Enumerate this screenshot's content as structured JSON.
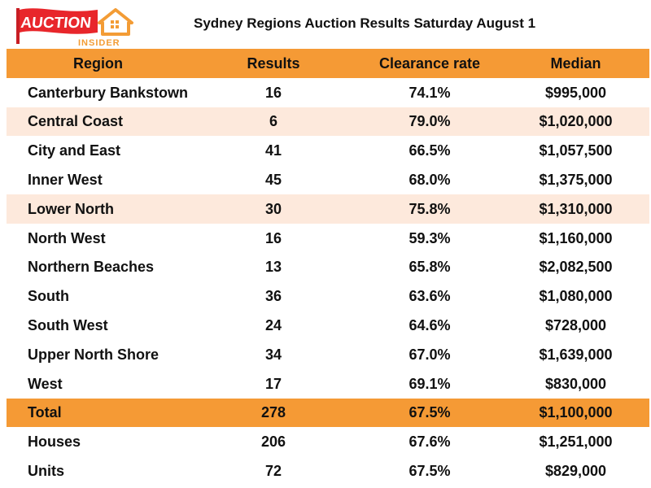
{
  "logo": {
    "word": "AUCTION",
    "subword": "INSIDER",
    "colors": {
      "red": "#e8262b",
      "orange": "#f39c35"
    }
  },
  "chart_data": {
    "type": "table",
    "title": "Sydney Regions Auction Results Saturday August 1",
    "columns": [
      "Region",
      "Results",
      "Clearance rate",
      "Median"
    ],
    "rows": [
      {
        "region": "Canterbury Bankstown",
        "results": "16",
        "rate": "74.1%",
        "median": "$995,000",
        "style": "plain"
      },
      {
        "region": "Central Coast",
        "results": "6",
        "rate": "79.0%",
        "median": "$1,020,000",
        "style": "tint"
      },
      {
        "region": "City and East",
        "results": "41",
        "rate": "66.5%",
        "median": "$1,057,500",
        "style": "plain"
      },
      {
        "region": "Inner West",
        "results": "45",
        "rate": "68.0%",
        "median": "$1,375,000",
        "style": "plain"
      },
      {
        "region": "Lower North",
        "results": "30",
        "rate": "75.8%",
        "median": "$1,310,000",
        "style": "tint"
      },
      {
        "region": "North West",
        "results": "16",
        "rate": "59.3%",
        "median": "$1,160,000",
        "style": "plain"
      },
      {
        "region": "Northern Beaches",
        "results": "13",
        "rate": "65.8%",
        "median": "$2,082,500",
        "style": "plain"
      },
      {
        "region": "South",
        "results": "36",
        "rate": "63.6%",
        "median": "$1,080,000",
        "style": "plain"
      },
      {
        "region": "South West",
        "results": "24",
        "rate": "64.6%",
        "median": "$728,000",
        "style": "plain"
      },
      {
        "region": "Upper North Shore",
        "results": "34",
        "rate": "67.0%",
        "median": "$1,639,000",
        "style": "plain"
      },
      {
        "region": "West",
        "results": "17",
        "rate": "69.1%",
        "median": "$830,000",
        "style": "plain"
      },
      {
        "region": "Total",
        "results": "278",
        "rate": "67.5%",
        "median": "$1,100,000",
        "style": "total"
      },
      {
        "region": "Houses",
        "results": "206",
        "rate": "67.6%",
        "median": "$1,251,000",
        "style": "plain"
      },
      {
        "region": "Units",
        "results": "72",
        "rate": "67.5%",
        "median": "$829,000",
        "style": "plain"
      }
    ],
    "colors": {
      "header": "#f59a35",
      "highlight": "#fde9dc",
      "total": "#f59a35"
    }
  }
}
